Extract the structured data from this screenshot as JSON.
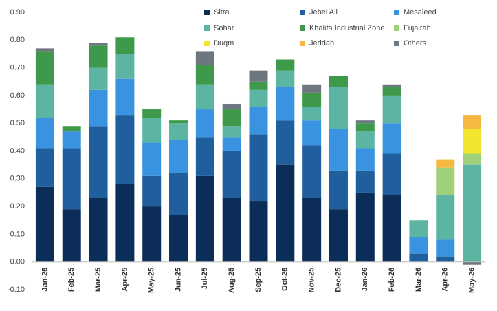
{
  "chart_data": {
    "type": "stacked-bar",
    "categories": [
      "Jan-25",
      "Feb-25",
      "Mar-25",
      "Apr-25",
      "May-25",
      "Jun-25",
      "Jul-25",
      "Aug-25",
      "Sep-25",
      "Oct-25",
      "Nov-25",
      "Dec-25",
      "Jan-26",
      "Feb-26",
      "Mar-26",
      "Apr-26",
      "May-26"
    ],
    "series": [
      {
        "name": "Sitra",
        "color": "#0c2d57",
        "values": [
          0.27,
          0.19,
          0.23,
          0.28,
          0.2,
          0.17,
          0.31,
          0.23,
          0.22,
          0.35,
          0.23,
          0.19,
          0.25,
          0.24,
          0,
          0,
          0
        ]
      },
      {
        "name": "Jebel Ali",
        "color": "#1f5f9e",
        "values": [
          0.14,
          0.22,
          0.26,
          0.25,
          0.11,
          0.15,
          0.14,
          0.17,
          0.24,
          0.16,
          0.19,
          0.14,
          0.08,
          0.15,
          0.03,
          0.02,
          0
        ]
      },
      {
        "name": "Mesaieed",
        "color": "#3a93e0",
        "values": [
          0.11,
          0.06,
          0.13,
          0.13,
          0.12,
          0.12,
          0.1,
          0.05,
          0.1,
          0.12,
          0.09,
          0.15,
          0.08,
          0.11,
          0.06,
          0.06,
          0
        ]
      },
      {
        "name": "Sohar",
        "color": "#5bb5a2",
        "values": [
          0.12,
          0,
          0.08,
          0.09,
          0.09,
          0.06,
          0.09,
          0.04,
          0.06,
          0.06,
          0.05,
          0.15,
          0.06,
          0.1,
          0.06,
          0.16,
          0.35
        ]
      },
      {
        "name": "Khalifa Industrial Zone",
        "color": "#3e9a4a",
        "values": [
          0.12,
          0.02,
          0.08,
          0.06,
          0.03,
          0.01,
          0.07,
          0.06,
          0.03,
          0.04,
          0.05,
          0.04,
          0.03,
          0.03,
          0,
          0,
          0
        ]
      },
      {
        "name": "Fujairah",
        "color": "#9fd07a",
        "values": [
          0,
          0,
          0,
          0,
          0,
          0,
          0,
          0,
          0,
          0,
          0,
          0,
          0,
          0,
          0,
          0.1,
          0.04
        ]
      },
      {
        "name": "Duqm",
        "color": "#f2e52e",
        "values": [
          0,
          0,
          0,
          0,
          0,
          0,
          0,
          0,
          0,
          0,
          0,
          0,
          0,
          0,
          0,
          0,
          0.09
        ]
      },
      {
        "name": "Jeddah",
        "color": "#f6b940",
        "values": [
          0,
          0,
          0,
          0,
          0,
          0,
          0,
          0,
          0,
          0,
          0,
          0,
          0,
          0,
          0,
          0.03,
          0.05
        ]
      },
      {
        "name": "Others",
        "color": "#6e7780",
        "values": [
          0.01,
          0,
          0.01,
          0,
          0,
          0,
          0.05,
          0.02,
          0.04,
          0,
          0.03,
          0,
          0.01,
          0.01,
          0,
          0,
          -0.01
        ]
      }
    ],
    "ylim": [
      -0.1,
      0.9
    ],
    "yticks": [
      {
        "value": -0.1,
        "label": "-0.10"
      },
      {
        "value": 0,
        "label": "0.00"
      },
      {
        "value": 0.1,
        "label": "0.10"
      },
      {
        "value": 0.2,
        "label": "0.20"
      },
      {
        "value": 0.3,
        "label": "0.30"
      },
      {
        "value": 0.4,
        "label": "0.40"
      },
      {
        "value": 0.5,
        "label": "0.50"
      },
      {
        "value": 0.6,
        "label": "0.60"
      },
      {
        "value": 0.7,
        "label": "0.70"
      },
      {
        "value": 0.8,
        "label": "0.80"
      },
      {
        "value": 0.9,
        "label": "0.90"
      }
    ],
    "grid": false,
    "legend": "top-right"
  }
}
